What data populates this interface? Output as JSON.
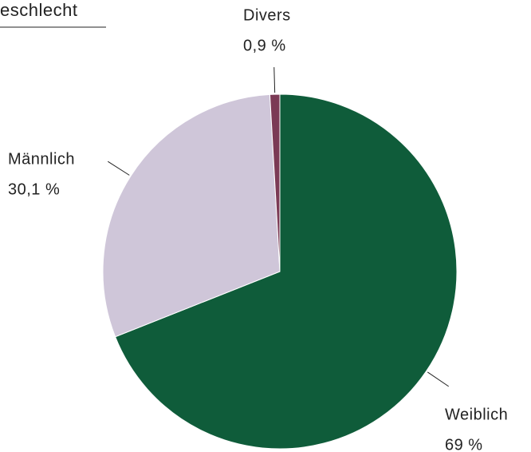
{
  "chart_data": {
    "type": "pie",
    "title": "eschlecht",
    "categories": [
      "Weiblich",
      "Männlich",
      "Divers"
    ],
    "values": [
      69,
      30.1,
      0.9
    ],
    "value_labels": [
      "69 %",
      "30,1 %",
      "0,9 %"
    ],
    "colors": [
      "#0f5c3a",
      "#cfc6d9",
      "#7b3a55"
    ]
  }
}
